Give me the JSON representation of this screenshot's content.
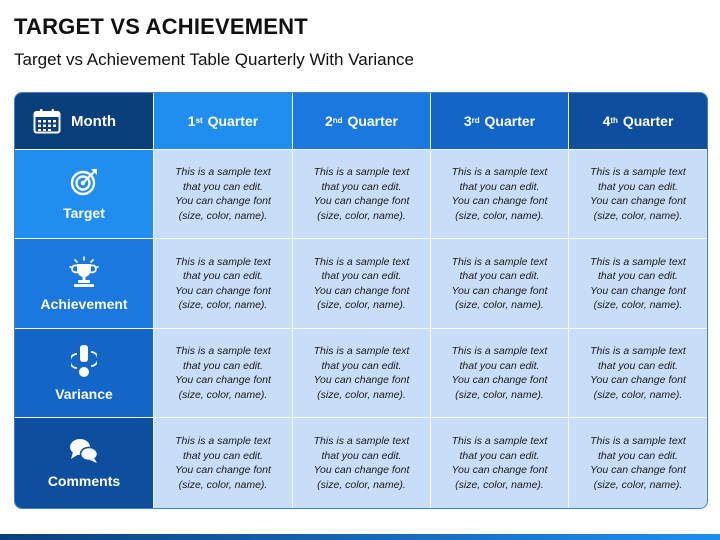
{
  "header": {
    "title": "TARGET VS ACHIEVEMENT",
    "subtitle": "Target vs Achievement Table Quarterly With Variance"
  },
  "table": {
    "corner": {
      "label": "Month",
      "icon": "calendar-icon"
    },
    "columns": [
      {
        "number": "1",
        "suffix": "st",
        "word": "Quarter"
      },
      {
        "number": "2",
        "suffix": "nd",
        "word": "Quarter"
      },
      {
        "number": "3",
        "suffix": "rd",
        "word": "Quarter"
      },
      {
        "number": "4",
        "suffix": "th",
        "word": "Quarter"
      }
    ],
    "rows": [
      {
        "label": "Target",
        "icon": "target-icon"
      },
      {
        "label": "Achievement",
        "icon": "trophy-icon"
      },
      {
        "label": "Variance",
        "icon": "exclamation-icon"
      },
      {
        "label": "Comments",
        "icon": "chat-bubbles-icon"
      }
    ],
    "cell_text": {
      "line1": "This is a sample text",
      "line2": "that you can edit.",
      "line3": "You can change font",
      "line4": "(size, color, name)."
    }
  },
  "colors": {
    "header_dark": "#0b3f7c",
    "q1": "#1f8ef0",
    "q2": "#1a78e0",
    "q3": "#1366c8",
    "q4": "#0d4f9e",
    "cell_bg": "#c8ddf8"
  }
}
